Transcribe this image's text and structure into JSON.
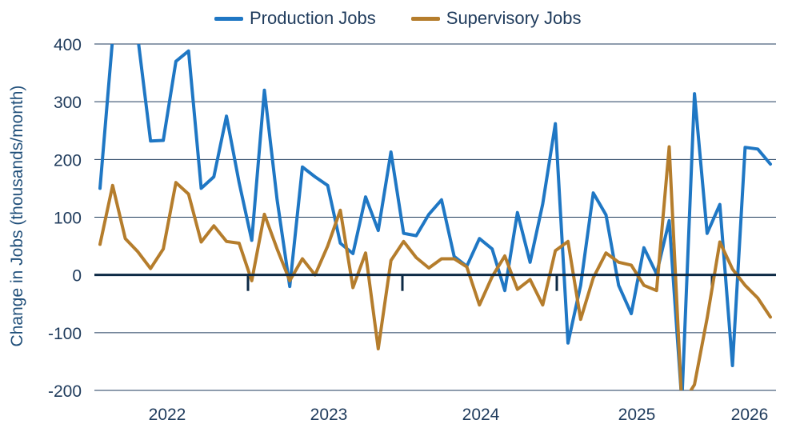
{
  "chart_data": {
    "type": "line",
    "title": "",
    "xlabel": "",
    "ylabel": "Change in Jobs (thousands/month)",
    "ylim": [
      -200,
      400
    ],
    "yticks": [
      400,
      300,
      200,
      100,
      0,
      -100,
      -200
    ],
    "x_tick_labels": [
      "2022",
      "2023",
      "2024",
      "2025",
      "2026"
    ],
    "grid": true,
    "legend_position": "top",
    "colors": {
      "production": "#1f77c4",
      "supervisory": "#b57d2c",
      "axis": "#0d2a45",
      "grid": "#1f3b5c"
    },
    "series": [
      {
        "name": "Production Jobs",
        "color": "#1f77c4",
        "values": [
          150,
          410,
          415,
          410,
          232,
          233,
          370,
          388,
          150,
          170,
          275,
          160,
          60,
          320,
          130,
          -20,
          187,
          170,
          155,
          55,
          37,
          135,
          77,
          213,
          72,
          68,
          105,
          130,
          32,
          15,
          63,
          45,
          -27,
          108,
          22,
          123,
          262,
          -118,
          -18,
          142,
          104,
          -18,
          -67,
          47,
          2,
          94,
          -220,
          314,
          72,
          122,
          -157,
          221,
          218,
          192
        ]
      },
      {
        "name": "Supervisory Jobs",
        "color": "#b57d2c",
        "values": [
          53,
          155,
          63,
          40,
          11,
          45,
          160,
          140,
          57,
          85,
          58,
          55,
          -10,
          105,
          45,
          -10,
          28,
          0,
          50,
          112,
          -22,
          38,
          -128,
          25,
          58,
          30,
          12,
          28,
          28,
          14,
          -52,
          -3,
          33,
          -25,
          -8,
          -52,
          42,
          58,
          -77,
          -5,
          38,
          22,
          17,
          -18,
          -27,
          222,
          -225,
          -190,
          -75,
          57,
          10,
          -18,
          -40,
          -73
        ]
      }
    ]
  }
}
